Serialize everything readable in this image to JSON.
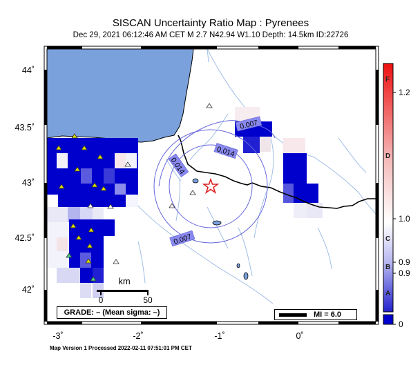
{
  "header": {
    "title": "SISCAN Uncertainty Ratio Map : Pyrenees",
    "subtitle": "Dec 29, 2021 06:12:46 AM CET   M 2.7   N42.94 W1.10   Depth: 14.5km   ID:22726"
  },
  "axes": {
    "lat_ticks": [
      {
        "label": "44˚",
        "value": 44.0
      },
      {
        "label": "43.5˚",
        "value": 43.5
      },
      {
        "label": "43˚",
        "value": 43.0
      },
      {
        "label": "42.5˚",
        "value": 42.5
      },
      {
        "label": "42˚",
        "value": 42.0
      }
    ],
    "lon_ticks": [
      {
        "label": "-3˚",
        "value": -3.0
      },
      {
        "label": "-2˚",
        "value": -2.0
      },
      {
        "label": "-1˚",
        "value": -1.0
      },
      {
        "label": "0˚",
        "value": 0.0
      }
    ],
    "lat_range": [
      41.84,
      44.22
    ],
    "lon_range": [
      -3.1,
      0.98
    ]
  },
  "epicenter": {
    "lat": 42.94,
    "lon": -1.1,
    "marker": "star-icon",
    "color": "#dd2222"
  },
  "contours": [
    {
      "label": "0.007",
      "color": "#7777dd"
    },
    {
      "label": "0.014",
      "color": "#7777dd"
    },
    {
      "label": "0.014",
      "color": "#7777dd"
    },
    {
      "label": "0.007",
      "color": "#7777dd"
    }
  ],
  "scale_bar": {
    "unit": "km",
    "labels": [
      "0",
      "50"
    ]
  },
  "grade_box": "GRADE: – (Mean sigma: –)",
  "mi_box": "MI = 6.0",
  "colorbar": {
    "value_labels": [
      "1.2",
      "1.0",
      "0.9",
      "0.9",
      "0"
    ],
    "letters": [
      "F",
      "D",
      "C",
      "B",
      "A"
    ],
    "colors": {
      "top": "#ee2222",
      "middle": "#ffffff",
      "bottom": "#2222cc",
      "base": "#0000cc"
    }
  },
  "footer": "Map Version 1 Processed 2022-02-11 07:51:01 PM CET",
  "colors": {
    "sea": "#7ba1dc",
    "land": "#ffffff",
    "cell_strong": "#0000cc",
    "station": "#dddd00",
    "station_alt": "#44cc88",
    "river": "#9fbde6",
    "border": "#000000"
  }
}
